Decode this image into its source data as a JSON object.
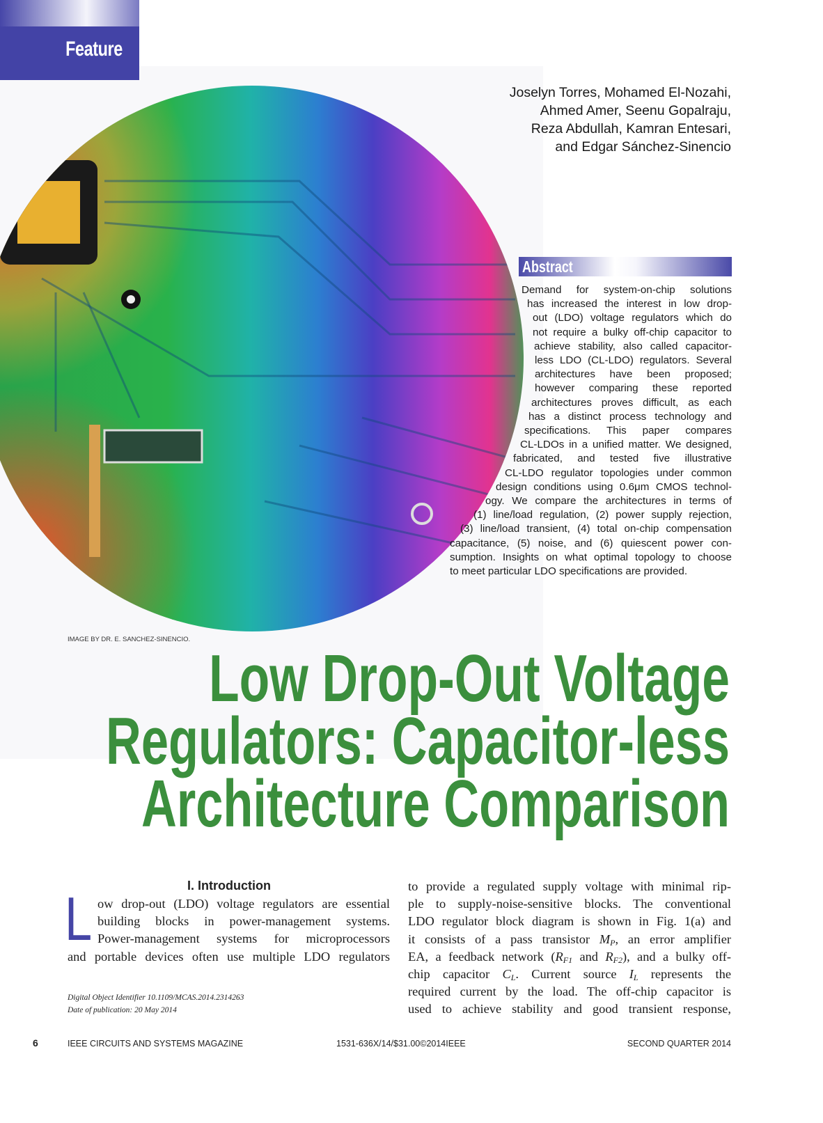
{
  "header": {
    "section": "Feature"
  },
  "authors": [
    "Joselyn Torres, Mohamed El-Nozahi,",
    "Ahmed Amer, Seenu Gopalraju,",
    "Reza Abdullah, Kamran Entesari,",
    "and Edgar Sánchez-Sinencio"
  ],
  "image_credit": "IMAGE BY DR. E. SANCHEZ-SINENCIO.",
  "abstract": {
    "heading": "Abstract",
    "lines": [
      "Demand for system-on-chip solutions",
      "has increased the interest in low drop-",
      "out (LDO) voltage regulators which do",
      "not require a bulky off-chip capacitor to",
      "achieve stability, also called capacitor-",
      "less LDO (CL-LDO) regulators. Several",
      "architectures have been proposed;",
      "however comparing these reported",
      "architectures proves difficult, as each",
      "has a distinct process technology and",
      "specifications. This paper compares",
      "CL-LDOs in a unified matter. We designed,",
      "fabricated, and tested five illustrative",
      "CL-LDO regulator topologies under common",
      "design conditions using 0.6μm CMOS technol-",
      "ogy. We compare the architectures in terms of",
      "(1) line/load regulation, (2) power supply rejection,",
      "(3) line/load transient, (4) total on-chip compensation",
      "capacitance, (5) noise, and (6) quiescent power con-",
      "sumption. Insights on what optimal topology to choose",
      "to meet particular LDO specifications are provided."
    ]
  },
  "title": [
    "Low Drop-Out Voltage",
    "Regulators: Capacitor-less",
    "Architecture Comparison"
  ],
  "intro": {
    "heading": "I. Introduction",
    "drop_cap": "L",
    "left_lines": [
      "ow drop-out (LDO) voltage regulators are essential",
      "building blocks in power-management systems.",
      "Power-management systems for microprocessors",
      "and portable devices often use multiple LDO regulators"
    ],
    "right_lines": [
      [
        {
          "t": "to provide a regulated supply voltage with minimal rip-"
        }
      ],
      [
        {
          "t": "ple to supply-noise-sensitive blocks. The conventional"
        }
      ],
      [
        {
          "t": "LDO regulator block diagram is shown in Fig. 1(a) and"
        }
      ],
      [
        {
          "t": "it consists of a pass transistor "
        },
        {
          "i": "M"
        },
        {
          "sub": "P"
        },
        {
          "t": ", an error amplifier"
        }
      ],
      [
        {
          "t": "EA, a feedback network ("
        },
        {
          "i": "R"
        },
        {
          "sub": "F1"
        },
        {
          "t": " and "
        },
        {
          "i": "R"
        },
        {
          "sub": "F2"
        },
        {
          "t": "), and a bulky off-"
        }
      ],
      [
        {
          "t": "chip capacitor "
        },
        {
          "i": "C"
        },
        {
          "sub": "L"
        },
        {
          "t": ". Current source "
        },
        {
          "i": "I"
        },
        {
          "sub": "L"
        },
        {
          "t": " represents the"
        }
      ],
      [
        {
          "t": "required current by the load. The off-chip capacitor is"
        }
      ],
      [
        {
          "t": "used to achieve stability and good transient response,"
        }
      ]
    ]
  },
  "footnotes": [
    "Digital Object Identifier 10.1109/MCAS.2014.2314263",
    "Date of publication: 20 May 2014"
  ],
  "footer": {
    "page": "6",
    "magazine": "IEEE CIRCUITS AND SYSTEMS MAGAZINE",
    "code": "1531-636X/14/$31.00©2014IEEE",
    "issue": "SECOND QUARTER 2014"
  }
}
